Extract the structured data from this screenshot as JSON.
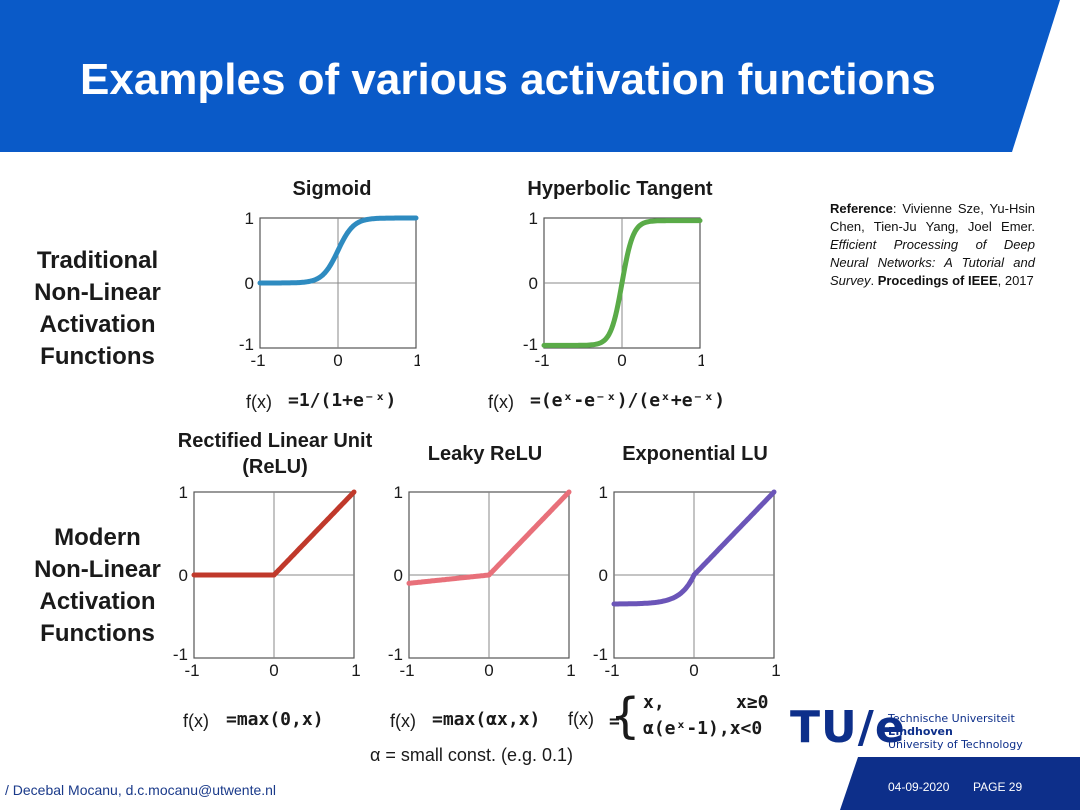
{
  "slide": {
    "title": "Examples of various activation functions",
    "banner_color": "#0a5ac8"
  },
  "rows": {
    "traditional": "Traditional\nNon-Linear\nActivation\nFunctions",
    "modern": "Modern\nNon-Linear\nActivation\nFunctions"
  },
  "reference": {
    "label": "Reference",
    "authors": ": Vivienne Sze, Yu-Hsin Chen, Tien-Ju Yang, Joel Emer. ",
    "work": "Efficient Processing of Deep Neural Networks: A Tutorial and Survey",
    "end": ". ",
    "venue": "Procedings of IEEE",
    "year": ", 2017"
  },
  "formulas": {
    "fx": "f(x)",
    "sigmoid": "=1/(1+e⁻ˣ)",
    "tanh": "=(eˣ-e⁻ˣ)/(eˣ+e⁻ˣ)",
    "relu": "=max(0,x)",
    "leaky": "=max(αx,x)",
    "elu_eq": "=",
    "elu_line1_a": "x,",
    "elu_line1_b": "x≥0",
    "elu_line2": "α(eˣ-1),x<0",
    "alpha_note": "α = small const. (e.g. 0.1)"
  },
  "footer": {
    "author": "/ Decebal Mocanu, d.c.mocanu@utwente.nl",
    "date": "04-09-2020",
    "page": "PAGE 29",
    "logo_mark": "TU/e",
    "logo_line1": "Technische Universiteit",
    "logo_line2": "Eindhoven",
    "logo_line3": "University of Technology"
  },
  "chart_data": [
    {
      "type": "line",
      "title": "Sigmoid",
      "xlim": [
        -1,
        1
      ],
      "ylim": [
        -1,
        1
      ],
      "xticks": [
        "-1",
        "0",
        "1"
      ],
      "yticks": [
        "1",
        "0",
        "-1"
      ],
      "grid": true,
      "color": "#2e8bc0",
      "function": "sigmoid",
      "x": [
        -1,
        -0.75,
        -0.5,
        -0.25,
        0,
        0.25,
        0.5,
        0.75,
        1
      ],
      "y": [
        0.02,
        0.05,
        0.12,
        0.27,
        0.5,
        0.73,
        0.88,
        0.95,
        0.98
      ]
    },
    {
      "type": "line",
      "title": "Hyperbolic Tangent",
      "xlim": [
        -1,
        1
      ],
      "ylim": [
        -1,
        1
      ],
      "xticks": [
        "-1",
        "0",
        "1"
      ],
      "yticks": [
        "1",
        "0",
        "-1"
      ],
      "grid": true,
      "color": "#5aab48",
      "function": "tanh",
      "x": [
        -1,
        -0.75,
        -0.5,
        -0.25,
        0,
        0.25,
        0.5,
        0.75,
        1
      ],
      "y": [
        -0.96,
        -0.91,
        -0.76,
        -0.46,
        0,
        0.46,
        0.76,
        0.91,
        0.96
      ]
    },
    {
      "type": "line",
      "title": "Rectified Linear Unit\n(ReLU)",
      "xlim": [
        -1,
        1
      ],
      "ylim": [
        -1,
        1
      ],
      "xticks": [
        "-1",
        "0",
        "1"
      ],
      "yticks": [
        "1",
        "0",
        "-1"
      ],
      "grid": true,
      "color": "#c0392b",
      "function": "relu",
      "x": [
        -1,
        0,
        1
      ],
      "y": [
        0,
        0,
        1
      ]
    },
    {
      "type": "line",
      "title": "Leaky ReLU",
      "xlim": [
        -1,
        1
      ],
      "ylim": [
        -1,
        1
      ],
      "xticks": [
        "-1",
        "0",
        "1"
      ],
      "yticks": [
        "1",
        "0",
        "-1"
      ],
      "grid": true,
      "color": "#e8707a",
      "function": "leaky_relu",
      "alpha": 0.1,
      "x": [
        -1,
        0,
        1
      ],
      "y": [
        -0.1,
        0,
        1
      ]
    },
    {
      "type": "line",
      "title": "Exponential LU",
      "xlim": [
        -1,
        1
      ],
      "ylim": [
        -1,
        1
      ],
      "xticks": [
        "-1",
        "0",
        "1"
      ],
      "yticks": [
        "1",
        "0",
        "-1"
      ],
      "grid": true,
      "color": "#6b55b8",
      "function": "elu",
      "alpha": 0.35,
      "x": [
        -1,
        -0.75,
        -0.5,
        -0.25,
        0,
        0.25,
        0.5,
        0.75,
        1
      ],
      "y": [
        -0.35,
        -0.34,
        -0.3,
        -0.2,
        0,
        0.25,
        0.5,
        0.75,
        1
      ]
    }
  ]
}
